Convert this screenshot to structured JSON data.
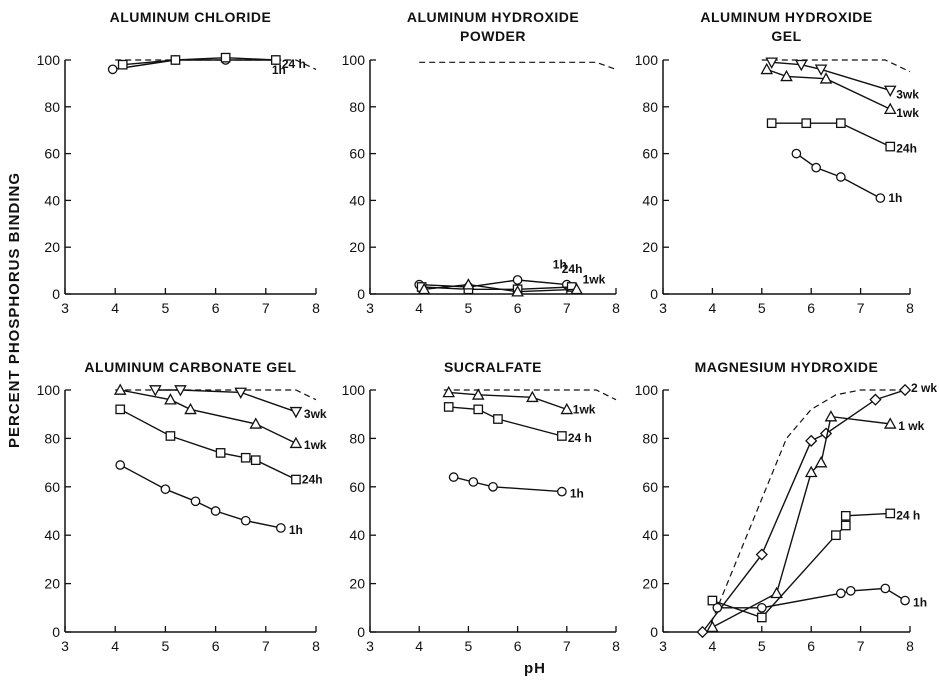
{
  "ylabel": "PERCENT PHOSPHORUS BINDING",
  "xlabel": "pH",
  "chart_data": [
    {
      "type": "line",
      "title": [
        "ALUMINUM CHLORIDE"
      ],
      "xlim": [
        3,
        8
      ],
      "ylim": [
        0,
        100
      ],
      "xticks": [
        3,
        4,
        5,
        6,
        7,
        8
      ],
      "yticks": [
        0,
        20,
        40,
        60,
        80,
        100
      ],
      "reference": {
        "style": "dashed",
        "points": [
          [
            4.0,
            100
          ],
          [
            7.6,
            100
          ],
          [
            8.0,
            96
          ]
        ]
      },
      "series": [
        {
          "name": "1h",
          "marker": "circle",
          "points": [
            [
              3.95,
              96
            ],
            [
              5.2,
              100
            ],
            [
              6.2,
              100
            ],
            [
              7.2,
              100
            ]
          ]
        },
        {
          "name": "24 h",
          "marker": "square",
          "points": [
            [
              4.15,
              98
            ],
            [
              5.2,
              100
            ],
            [
              6.2,
              101
            ],
            [
              7.2,
              100
            ]
          ]
        }
      ]
    },
    {
      "type": "line",
      "title": [
        "ALUMINUM HYDROXIDE",
        "POWDER"
      ],
      "xlim": [
        3,
        8
      ],
      "ylim": [
        0,
        100
      ],
      "xticks": [
        3,
        4,
        5,
        6,
        7,
        8
      ],
      "yticks": [
        0,
        20,
        40,
        60,
        80,
        100
      ],
      "reference": {
        "style": "dashed",
        "points": [
          [
            4.0,
            99
          ],
          [
            7.6,
            99
          ],
          [
            8.0,
            96
          ]
        ]
      },
      "series": [
        {
          "name": "1h",
          "marker": "circle",
          "points": [
            [
              4.0,
              4
            ],
            [
              5.0,
              3
            ],
            [
              6.0,
              6
            ],
            [
              7.0,
              4
            ]
          ]
        },
        {
          "name": "24h",
          "marker": "square",
          "points": [
            [
              4.05,
              3
            ],
            [
              5.0,
              2
            ],
            [
              6.0,
              2
            ],
            [
              7.1,
              3
            ]
          ]
        },
        {
          "name": "1wk",
          "marker": "triangle-up",
          "points": [
            [
              4.1,
              2
            ],
            [
              5.0,
              4
            ],
            [
              6.0,
              1
            ],
            [
              7.2,
              2
            ]
          ]
        }
      ]
    },
    {
      "type": "line",
      "title": [
        "ALUMINUM HYDROXIDE",
        "GEL"
      ],
      "xlim": [
        3,
        8
      ],
      "ylim": [
        0,
        100
      ],
      "xticks": [
        3,
        4,
        5,
        6,
        7,
        8
      ],
      "yticks": [
        0,
        20,
        40,
        60,
        80,
        100
      ],
      "reference": {
        "style": "dashed",
        "points": [
          [
            5.0,
            100
          ],
          [
            7.5,
            100
          ],
          [
            8.0,
            95
          ]
        ]
      },
      "series": [
        {
          "name": "3wk",
          "marker": "triangle-down",
          "points": [
            [
              5.2,
              99
            ],
            [
              5.8,
              98
            ],
            [
              6.2,
              96
            ],
            [
              7.6,
              87
            ]
          ]
        },
        {
          "name": "1wk",
          "marker": "triangle-up",
          "points": [
            [
              5.1,
              96
            ],
            [
              5.5,
              93
            ],
            [
              6.3,
              92
            ],
            [
              7.6,
              79
            ]
          ]
        },
        {
          "name": "24h",
          "marker": "square",
          "points": [
            [
              5.2,
              73
            ],
            [
              5.9,
              73
            ],
            [
              6.6,
              73
            ],
            [
              7.6,
              63
            ]
          ]
        },
        {
          "name": "1h",
          "marker": "circle",
          "points": [
            [
              5.7,
              60
            ],
            [
              6.1,
              54
            ],
            [
              6.6,
              50
            ],
            [
              7.4,
              41
            ]
          ]
        }
      ]
    },
    {
      "type": "line",
      "title": [
        "ALUMINUM CARBONATE GEL"
      ],
      "xlim": [
        3,
        8
      ],
      "ylim": [
        0,
        100
      ],
      "xticks": [
        3,
        4,
        5,
        6,
        7,
        8
      ],
      "yticks": [
        0,
        20,
        40,
        60,
        80,
        100
      ],
      "reference": {
        "style": "dashed",
        "points": [
          [
            4.0,
            100
          ],
          [
            7.6,
            100
          ],
          [
            8.0,
            96
          ]
        ]
      },
      "series": [
        {
          "name": "3wk",
          "marker": "triangle-down",
          "points": [
            [
              4.8,
              100
            ],
            [
              5.3,
              100
            ],
            [
              6.5,
              99
            ],
            [
              7.6,
              91
            ]
          ]
        },
        {
          "name": "1wk",
          "marker": "triangle-up",
          "points": [
            [
              4.1,
              100
            ],
            [
              5.1,
              96
            ],
            [
              5.5,
              92
            ],
            [
              6.8,
              86
            ],
            [
              7.6,
              78
            ]
          ]
        },
        {
          "name": "24h",
          "marker": "square",
          "points": [
            [
              4.1,
              92
            ],
            [
              5.1,
              81
            ],
            [
              6.1,
              74
            ],
            [
              6.6,
              72
            ],
            [
              6.8,
              71
            ],
            [
              7.6,
              63
            ]
          ]
        },
        {
          "name": "1h",
          "marker": "circle",
          "points": [
            [
              4.1,
              69
            ],
            [
              5.0,
              59
            ],
            [
              5.6,
              54
            ],
            [
              6.0,
              50
            ],
            [
              6.6,
              46
            ],
            [
              7.3,
              43
            ]
          ]
        }
      ]
    },
    {
      "type": "line",
      "title": [
        "SUCRALFATE"
      ],
      "xlim": [
        3,
        8
      ],
      "ylim": [
        0,
        100
      ],
      "xticks": [
        3,
        4,
        5,
        6,
        7,
        8
      ],
      "yticks": [
        0,
        20,
        40,
        60,
        80,
        100
      ],
      "reference": {
        "style": "dashed",
        "points": [
          [
            4.5,
            100
          ],
          [
            7.6,
            100
          ],
          [
            8.0,
            96
          ]
        ]
      },
      "series": [
        {
          "name": "1wk",
          "marker": "triangle-up",
          "points": [
            [
              4.6,
              99
            ],
            [
              5.2,
              98
            ],
            [
              6.3,
              97
            ],
            [
              7.0,
              92
            ]
          ]
        },
        {
          "name": "24 h",
          "marker": "square",
          "points": [
            [
              4.6,
              93
            ],
            [
              5.2,
              92
            ],
            [
              5.6,
              88
            ],
            [
              6.9,
              81
            ]
          ]
        },
        {
          "name": "1h",
          "marker": "circle",
          "points": [
            [
              4.7,
              64
            ],
            [
              5.1,
              62
            ],
            [
              5.5,
              60
            ],
            [
              6.9,
              58
            ]
          ]
        }
      ]
    },
    {
      "type": "line",
      "title": [
        "MAGNESIUM HYDROXIDE"
      ],
      "xlim": [
        3,
        8
      ],
      "ylim": [
        0,
        100
      ],
      "xticks": [
        3,
        4,
        5,
        6,
        7,
        8
      ],
      "yticks": [
        0,
        20,
        40,
        60,
        80,
        100
      ],
      "reference": {
        "style": "dashed",
        "points": [
          [
            3.9,
            0
          ],
          [
            4.5,
            30
          ],
          [
            5.0,
            55
          ],
          [
            5.5,
            80
          ],
          [
            6.0,
            92
          ],
          [
            6.5,
            98
          ],
          [
            7.0,
            100
          ],
          [
            8.0,
            100
          ]
        ]
      },
      "series": [
        {
          "name": "2 wk",
          "marker": "diamond",
          "points": [
            [
              3.8,
              0
            ],
            [
              5.0,
              32
            ],
            [
              6.0,
              79
            ],
            [
              6.3,
              82
            ],
            [
              7.3,
              96
            ],
            [
              7.9,
              100
            ]
          ]
        },
        {
          "name": "1 wk",
          "marker": "triangle-up",
          "points": [
            [
              4.0,
              2
            ],
            [
              5.3,
              16
            ],
            [
              6.0,
              66
            ],
            [
              6.2,
              70
            ],
            [
              6.4,
              89
            ],
            [
              7.6,
              86
            ]
          ]
        },
        {
          "name": "24 h",
          "marker": "square",
          "points": [
            [
              4.0,
              13
            ],
            [
              5.0,
              6
            ],
            [
              6.5,
              40
            ],
            [
              6.7,
              44
            ],
            [
              6.7,
              48
            ],
            [
              7.6,
              49
            ]
          ]
        },
        {
          "name": "1h",
          "marker": "circle",
          "points": [
            [
              4.1,
              10
            ],
            [
              5.0,
              10
            ],
            [
              6.6,
              16
            ],
            [
              6.8,
              17
            ],
            [
              7.5,
              18
            ],
            [
              7.9,
              13
            ]
          ]
        }
      ]
    }
  ]
}
